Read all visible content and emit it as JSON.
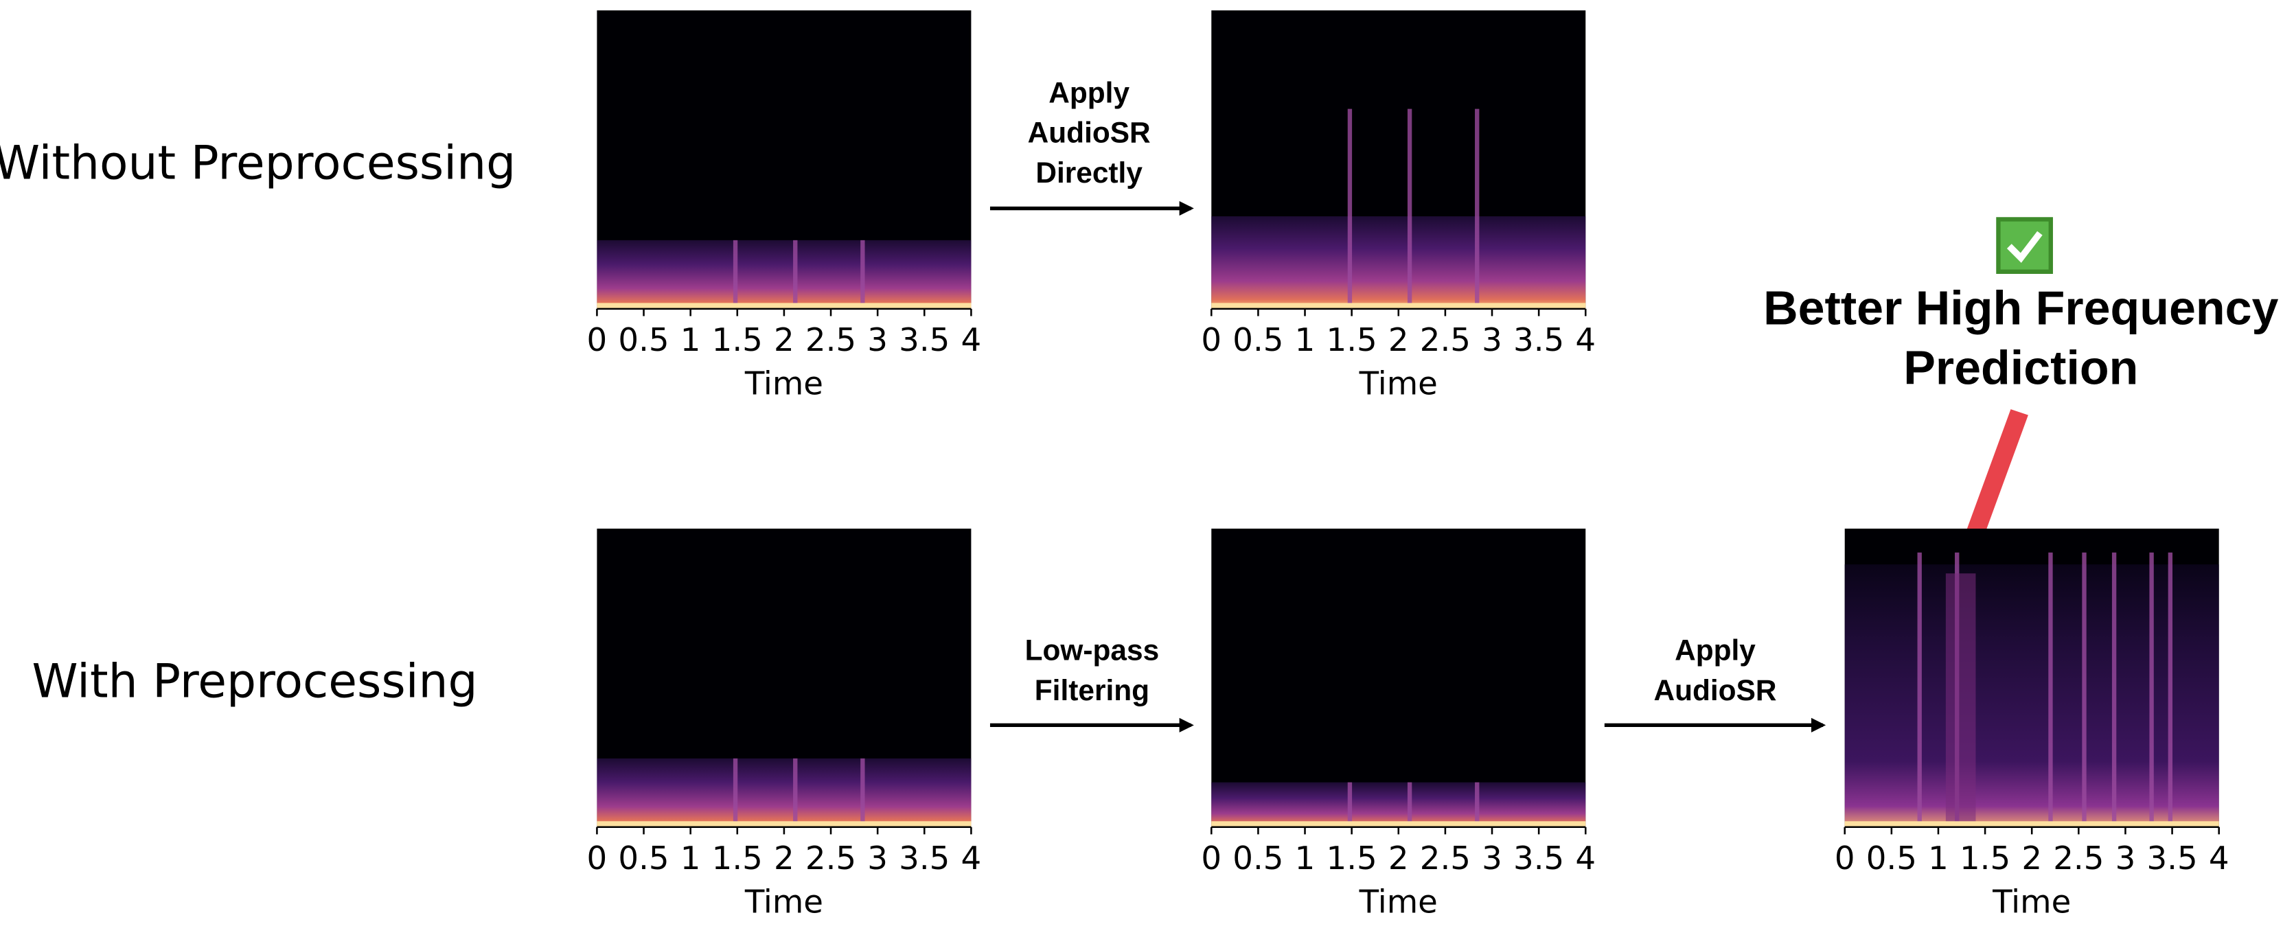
{
  "row_labels": [
    "Without Preprocessing",
    "With Preprocessing"
  ],
  "steps": [
    {
      "lines": [
        "Apply",
        "AudioSR",
        "Directly"
      ]
    },
    {
      "lines": [
        "Low-pass",
        "Filtering"
      ]
    },
    {
      "lines": [
        "Apply",
        "AudioSR"
      ]
    }
  ],
  "callout": {
    "lines": [
      "Better High Frequency",
      "Prediction"
    ]
  },
  "panels": [
    {
      "xticks": [
        "0",
        "0.5",
        "1",
        "1.5",
        "2",
        "2.5",
        "3",
        "3.5",
        "4"
      ],
      "xlabel": "Time"
    },
    {
      "xticks": [
        "0",
        "0.5",
        "1",
        "1.5",
        "2",
        "2.5",
        "3",
        "3.5",
        "4"
      ],
      "xlabel": "Time"
    },
    {
      "xticks": [
        "0",
        "0.5",
        "1",
        "1.5",
        "2",
        "2.5",
        "3",
        "3.5",
        "4"
      ],
      "xlabel": "Time"
    },
    {
      "xticks": [
        "0",
        "0.5",
        "1",
        "1.5",
        "2",
        "2.5",
        "3",
        "3.5",
        "4"
      ],
      "xlabel": "Time"
    },
    {
      "xticks": [
        "0",
        "0.5",
        "1",
        "1.5",
        "2",
        "2.5",
        "3",
        "3.5",
        "4"
      ],
      "xlabel": "Time"
    }
  ]
}
